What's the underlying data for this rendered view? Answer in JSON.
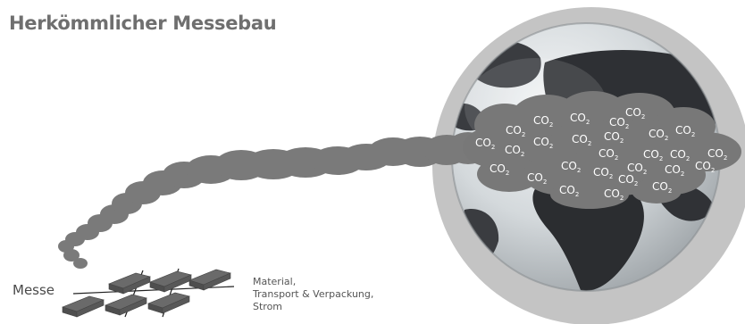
{
  "title": "Herkömmlicher Messebau",
  "messe_label": "Messe",
  "caption_lines": [
    "Material,",
    "Transport & Verpackung,",
    "Strom"
  ],
  "co2": {
    "main": "CO",
    "sub": "2"
  },
  "colors": {
    "title": "#6f6f6f",
    "smoke": "#7a7a7a",
    "globe_halo": "#c4c4c4",
    "ocean": "#dfe3e6",
    "land": "#2b2d30",
    "crates": "#6a6a6a"
  }
}
